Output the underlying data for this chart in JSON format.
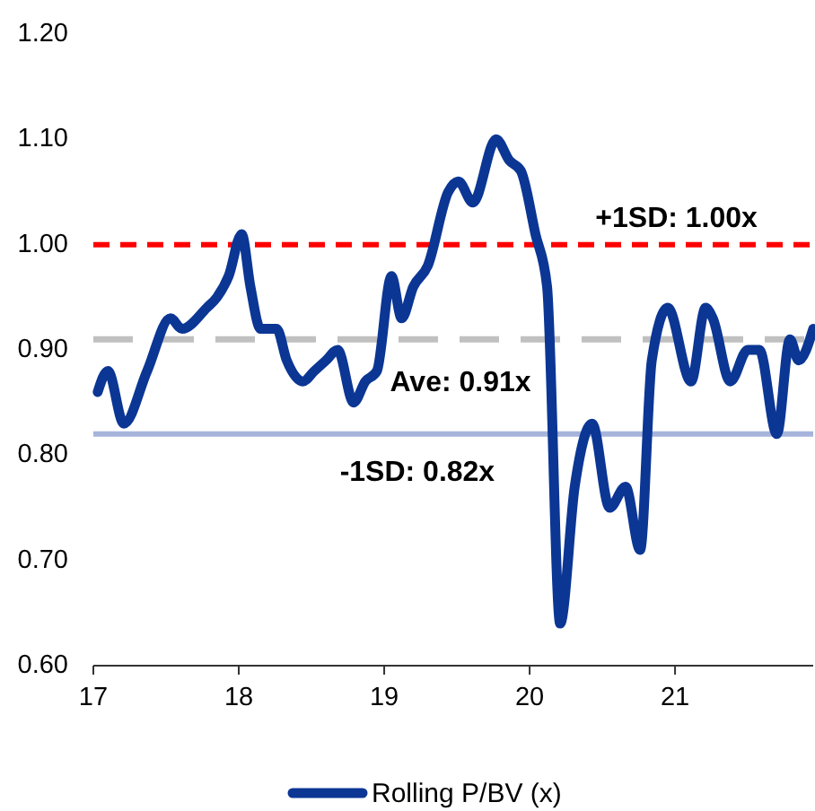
{
  "chart_data": {
    "type": "line",
    "series": [
      {
        "name": "Rolling P/BV (x)",
        "color": "#0b3694",
        "x": [
          17.03,
          17.1,
          17.21,
          17.37,
          17.53,
          17.61,
          17.78,
          17.85,
          17.93,
          18.02,
          18.08,
          18.15,
          18.26,
          18.33,
          18.44,
          18.52,
          18.6,
          18.68,
          18.79,
          18.87,
          18.95,
          19.05,
          19.12,
          19.2,
          19.3,
          19.44,
          19.51,
          19.61,
          19.77,
          19.86,
          19.94,
          20.04,
          20.12,
          20.21,
          20.31,
          20.43,
          20.55,
          20.66,
          20.76,
          20.84,
          20.95,
          21.11,
          21.21,
          21.26,
          21.38,
          21.5,
          21.58,
          21.7,
          21.79,
          21.85,
          21.95
        ],
        "values": [
          0.86,
          0.88,
          0.83,
          0.88,
          0.93,
          0.92,
          0.94,
          0.95,
          0.97,
          1.01,
          0.96,
          0.92,
          0.92,
          0.89,
          0.87,
          0.88,
          0.89,
          0.9,
          0.85,
          0.87,
          0.88,
          0.97,
          0.93,
          0.96,
          0.98,
          1.05,
          1.06,
          1.04,
          1.1,
          1.08,
          1.07,
          1.01,
          0.96,
          0.64,
          0.77,
          0.83,
          0.75,
          0.77,
          0.71,
          0.89,
          0.94,
          0.87,
          0.94,
          0.93,
          0.87,
          0.9,
          0.9,
          0.82,
          0.91,
          0.89,
          0.92
        ]
      }
    ],
    "xlim": [
      17,
      21.95
    ],
    "xticks": [
      17,
      18,
      19,
      20,
      21
    ],
    "ylim": [
      0.6,
      1.2
    ],
    "yticks": [
      {
        "value": 0.6,
        "label": "0.60"
      },
      {
        "value": 0.7,
        "label": "0.70"
      },
      {
        "value": 0.8,
        "label": "0.80"
      },
      {
        "value": 0.9,
        "label": "0.90"
      },
      {
        "value": 1.0,
        "label": "1.00"
      },
      {
        "value": 1.1,
        "label": "1.10"
      },
      {
        "value": 1.2,
        "label": "1.20"
      }
    ],
    "ref_lines": [
      {
        "axis": "y",
        "value": 1.0,
        "label": "+1SD: 1.00x",
        "color": "#ff0000",
        "line_style": "dashed"
      },
      {
        "axis": "y",
        "value": 0.91,
        "label": "Ave: 0.91x",
        "color": "#c0c0c0",
        "line_style": "dashed"
      },
      {
        "axis": "y",
        "value": 0.82,
        "label": "-1SD: 0.82x",
        "color": "#a6b4dc",
        "line_style": "solid"
      }
    ],
    "legend": "bottom"
  }
}
